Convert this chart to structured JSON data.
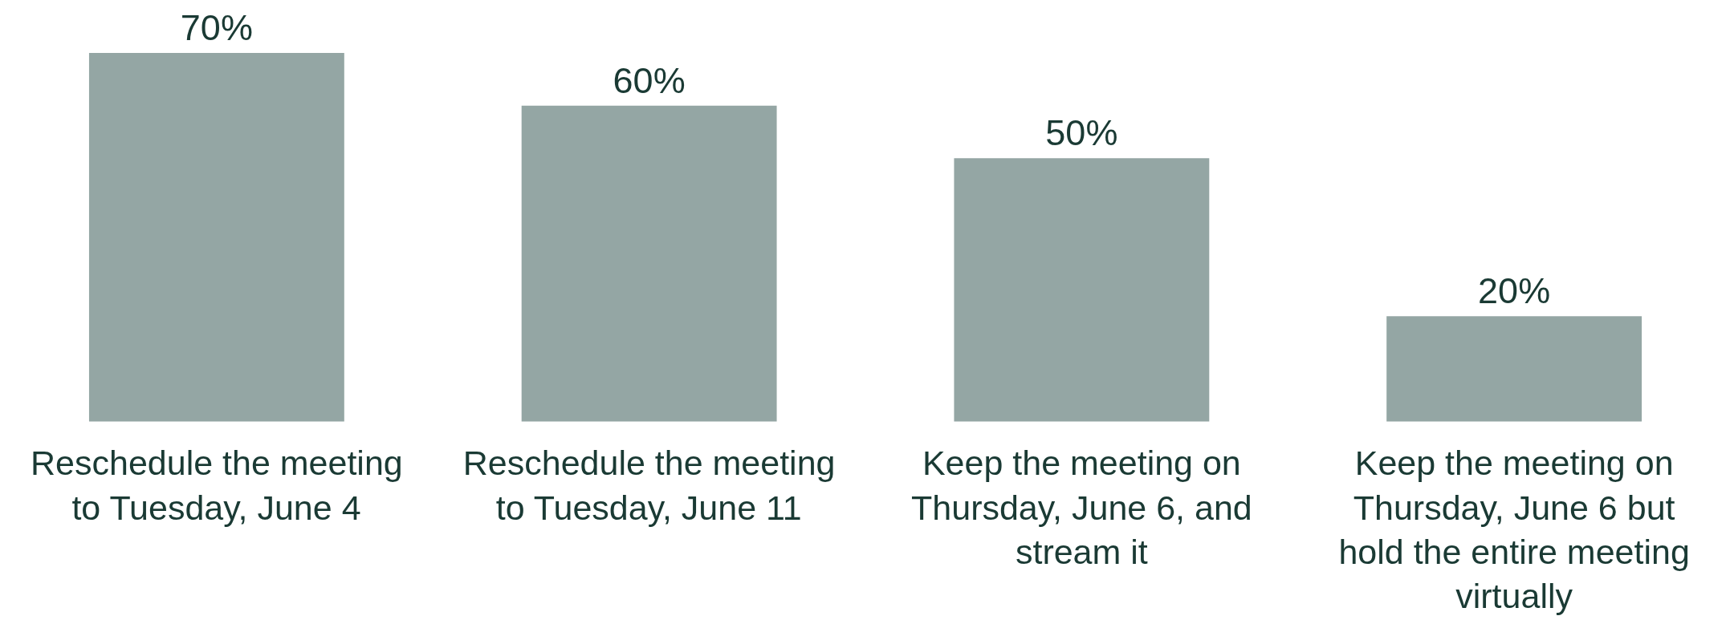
{
  "chart_data": {
    "type": "bar",
    "categories": [
      "Reschedule the meeting to Tuesday, June 4",
      "Reschedule the meeting to Tuesday, June 11",
      "Keep the meeting on Thursday, June 6, and stream it",
      "Keep the meeting on Thursday, June 6 but hold the entire meeting virtually"
    ],
    "values": [
      70,
      60,
      50,
      20
    ],
    "value_labels": [
      "70%",
      "60%",
      "50%",
      "20%"
    ],
    "color": "#94a6a4",
    "grid": false
  }
}
